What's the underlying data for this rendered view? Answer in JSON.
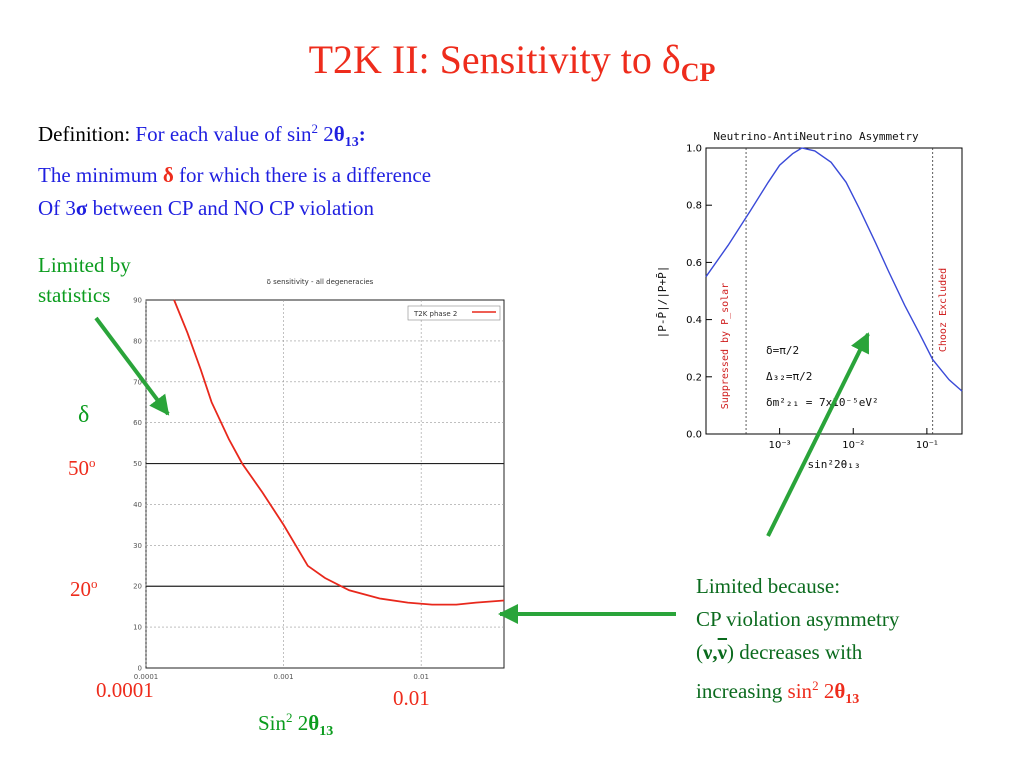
{
  "slide": {
    "title_main": "T2K II: Sensitivity to ",
    "title_delta": "δ",
    "title_sub": "CP"
  },
  "definition": {
    "label": "Definition",
    "colon": ": ",
    "line1_text": "For each value of sin",
    "line1_sup": "2",
    "line1_mid": " 2",
    "line1_theta": "θ",
    "line1_sub": "13",
    "line1_colon": ":",
    "line2_text": "The minimum ",
    "line2_delta": "δ",
    "line2_rest": " for which there is a difference",
    "line3_text": "Of 3",
    "line3_sigma": "σ",
    "line3_rest": " between CP and NO CP violation"
  },
  "annotations": {
    "limited_by_stats_line1": "Limited by",
    "limited_by_stats_line2": "statistics",
    "delta_symbol": "δ",
    "label_50": "50",
    "label_20": "20",
    "deg_sup": "o",
    "x_label_0001": "0.0001",
    "x_label_001": "0.01",
    "xlabel_text": "Sin",
    "xlabel_sup": "2",
    "xlabel_mid": " 2",
    "xlabel_theta": "θ",
    "xlabel_sub": "13",
    "limited_because_1": "Limited because:",
    "limited_because_2": "CP violation asymmetry",
    "limited_because_3_open": "(",
    "limited_because_3_nu": "ν,",
    "limited_because_3_nubar": "ν",
    "limited_because_3_close": ")",
    "limited_because_3_rest": " decreases with",
    "limited_because_4": "increasing ",
    "limited_because_4_sin": "sin",
    "limited_because_4_sup": "2",
    "limited_because_4_mid": " 2",
    "limited_because_4_theta": "θ",
    "limited_because_4_sub": "13"
  },
  "colors": {
    "title": "#ee2c1c",
    "definition": "#1f1fe0",
    "annotation_green": "#0b9c1e",
    "arrow": "#2aa43a",
    "left_curve": "#e8281c",
    "right_curve": "#3a4ad8",
    "right_band": "#d02020"
  },
  "chart_data": [
    {
      "type": "line",
      "title": "δ sensitivity - all degeneracies",
      "xlabel": "",
      "ylabel": "",
      "xscale": "log",
      "xlim": [
        0.0001,
        0.04
      ],
      "ylim": [
        0,
        90
      ],
      "x_ticks": [
        "0.0001",
        "0.001",
        "0.01"
      ],
      "y_ticks": [
        "0",
        "10",
        "20",
        "30",
        "40",
        "50",
        "60",
        "70",
        "80",
        "90"
      ],
      "grid": true,
      "legend_position": "top-right",
      "series": [
        {
          "name": "T2K phase 2",
          "color": "#e8281c",
          "x": [
            0.00016,
            0.0002,
            0.00025,
            0.0003,
            0.0004,
            0.0005,
            0.0007,
            0.001,
            0.0015,
            0.002,
            0.003,
            0.005,
            0.008,
            0.012,
            0.018,
            0.025,
            0.04
          ],
          "y": [
            90,
            82,
            73,
            65,
            56,
            50,
            43,
            35,
            25,
            22,
            19,
            17,
            16,
            15.5,
            15.5,
            16,
            16.5
          ]
        }
      ]
    },
    {
      "type": "line",
      "title": "Neutrino-AntiNeutrino Asymmetry",
      "xlabel": "sin²2θ₁₃",
      "ylabel": "|P-P̄|/|P+P̄|",
      "xscale": "log",
      "xlim": [
        0.0001,
        0.3
      ],
      "ylim": [
        0,
        1
      ],
      "x_ticks": [
        "10⁻³",
        "10⁻²",
        "10⁻¹"
      ],
      "y_ticks": [
        "0.0",
        "0.2",
        "0.4",
        "0.6",
        "0.8",
        "1.0"
      ],
      "grid": false,
      "vlines": [
        0.00035,
        0.12
      ],
      "band_labels": [
        "Suppressed by P_solar",
        "Chooz Excluded"
      ],
      "annotation_lines": [
        "δ=π/2",
        "Δ₃₂=π/2",
        "δm²₂₁ = 7x10⁻⁵eV²"
      ],
      "series": [
        {
          "name": "",
          "color": "#3a4ad8",
          "x": [
            0.0001,
            0.0002,
            0.0004,
            0.0007,
            0.001,
            0.0015,
            0.002,
            0.003,
            0.005,
            0.008,
            0.012,
            0.02,
            0.03,
            0.05,
            0.08,
            0.12,
            0.2,
            0.3
          ],
          "y": [
            0.55,
            0.66,
            0.78,
            0.88,
            0.94,
            0.98,
            1.0,
            0.99,
            0.95,
            0.88,
            0.79,
            0.67,
            0.57,
            0.45,
            0.35,
            0.26,
            0.19,
            0.15
          ]
        }
      ]
    }
  ]
}
